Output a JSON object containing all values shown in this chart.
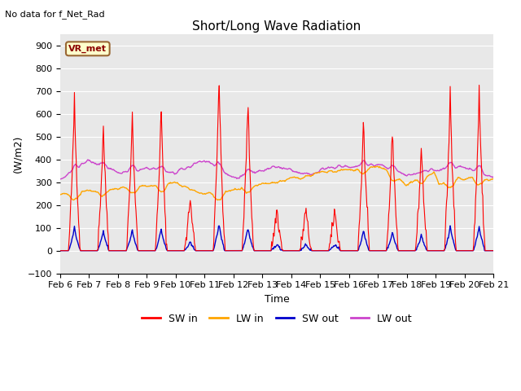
{
  "title": "Short/Long Wave Radiation",
  "top_left_text": "No data for f_Net_Rad",
  "ylabel": "(W/m2)",
  "xlabel": "Time",
  "ylim": [
    -100,
    950
  ],
  "yticks": [
    -100,
    0,
    100,
    200,
    300,
    400,
    500,
    600,
    700,
    800,
    900
  ],
  "bg_color": "#e8e8e8",
  "fig_color": "#ffffff",
  "legend_box_label": "VR_met",
  "legend_box_facecolor": "#ffffcc",
  "legend_box_edgecolor": "#996633",
  "line_colors": {
    "SW_in": "#ff0000",
    "LW_in": "#ffa500",
    "SW_out": "#0000cc",
    "LW_out": "#cc44cc"
  },
  "legend_labels": [
    "SW in",
    "LW in",
    "SW out",
    "LW out"
  ],
  "xtick_labels": [
    "Feb 6",
    "Feb 7",
    "Feb 8",
    "Feb 9",
    "Feb 10",
    "Feb 11",
    "Feb 12",
    "Feb 13",
    "Feb 14",
    "Feb 15",
    "Feb 16",
    "Feb 17",
    "Feb 18",
    "Feb 19",
    "Feb 20",
    "Feb 21"
  ]
}
